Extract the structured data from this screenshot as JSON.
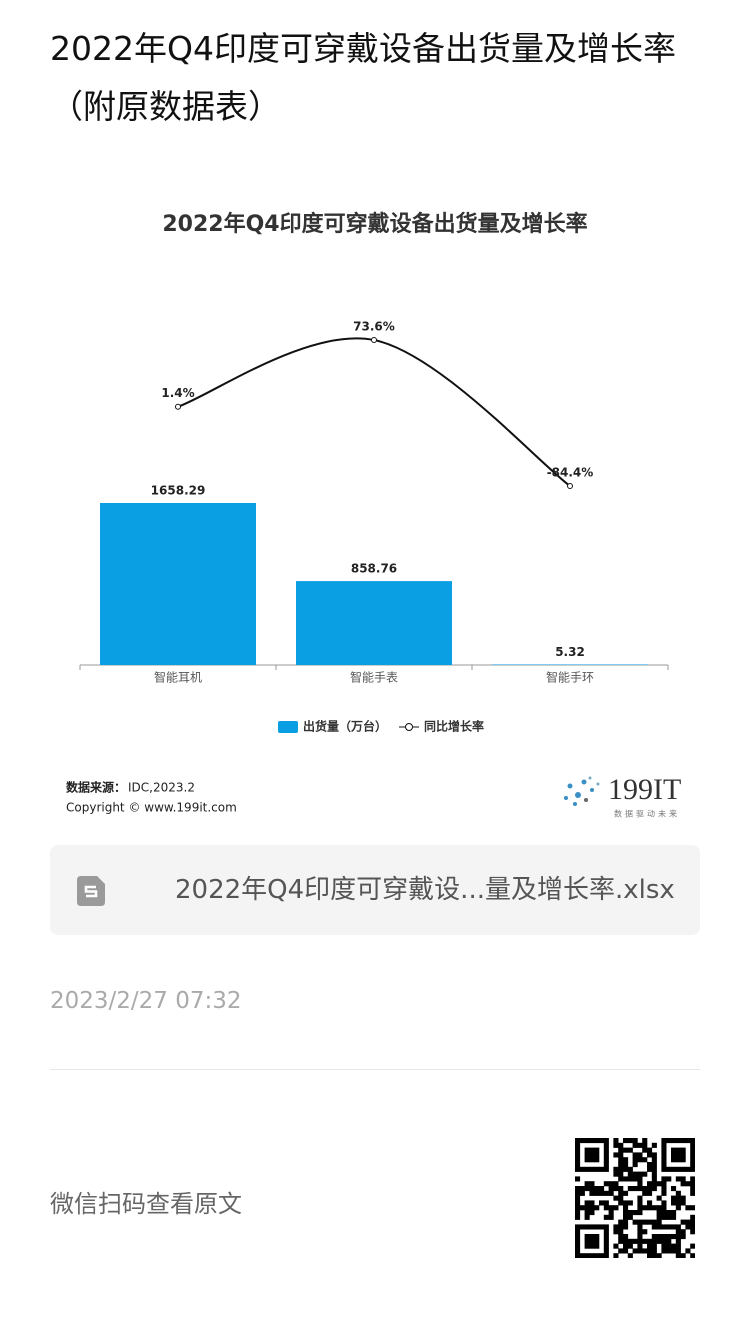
{
  "header": {
    "title": "2022年Q4印度可穿戴设备出货量及增长率（附原数据表）"
  },
  "chart_data": {
    "type": "bar",
    "title": "2022年Q4印度可穿戴设备出货量及增长率",
    "categories": [
      "智能耳机",
      "智能手表",
      "智能手环"
    ],
    "series": [
      {
        "name": "出货量（万台）",
        "type": "bar",
        "color": "#0a9ee2",
        "values": [
          1658.29,
          858.76,
          5.32
        ]
      },
      {
        "name": "同比增长率",
        "type": "line",
        "axis": "y2",
        "color": "#111111",
        "values": [
          1.4,
          73.6,
          -84.4
        ],
        "value_labels": [
          "1.4%",
          "73.6%",
          "-84.4%"
        ]
      }
    ]
  },
  "source": {
    "label": "数据来源：",
    "text": "IDC,2023.2",
    "copyright": "Copyright © www.199it.com"
  },
  "logo": {
    "name": "199IT",
    "slogan": "数据驱动未来"
  },
  "attachment": {
    "filename": "2022年Q4印度可穿戴设...量及增长率.xlsx"
  },
  "date": "2023/2/27 07:32",
  "footer": {
    "text": "微信扫码查看原文"
  }
}
